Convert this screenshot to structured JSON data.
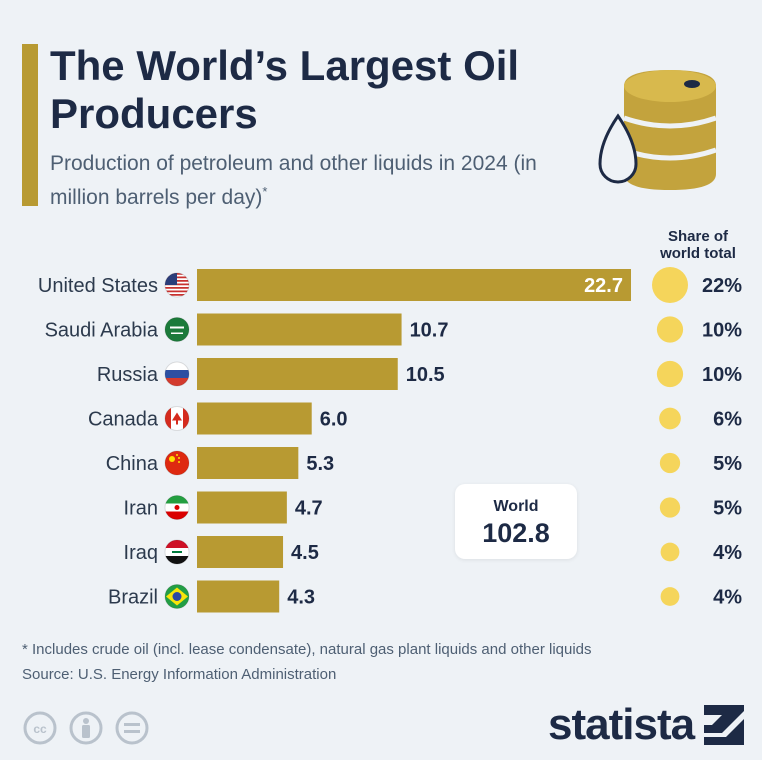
{
  "header": {
    "title": "The World’s Largest Oil Producers",
    "subtitle": "Production of petroleum and other liquids in 2024 (in million barrels per day)",
    "subtitle_marker": "*"
  },
  "share_header": "Share of world total",
  "world": {
    "label": "World",
    "value": "102.8"
  },
  "footer": {
    "footnote": "* Includes crude oil (incl. lease condensate), natural gas plant liquids and other liquids",
    "source": "Source: U.S. Energy Information Administration",
    "brand": "statista"
  },
  "icons": [
    "oil-barrel-icon",
    "oil-drop-icon",
    "cc-license-icon",
    "attribution-icon",
    "no-derivatives-icon",
    "statista-logo-icon"
  ],
  "colors": {
    "bar": "#b89a32",
    "share_dot": "#f5d55b",
    "title": "#1d2a45",
    "background": "#eef2f6"
  },
  "chart_data": {
    "type": "bar",
    "orientation": "horizontal",
    "categories": [
      "United States",
      "Saudi Arabia",
      "Russia",
      "Canada",
      "China",
      "Iran",
      "Iraq",
      "Brazil"
    ],
    "values": [
      22.7,
      10.7,
      10.5,
      6.0,
      5.3,
      4.7,
      4.5,
      4.3
    ],
    "value_labels": [
      "22.7",
      "10.7",
      "10.5",
      "6.0",
      "5.3",
      "4.7",
      "4.5",
      "4.3"
    ],
    "share_of_world_total": [
      22,
      10,
      10,
      6,
      5,
      5,
      4,
      4
    ],
    "share_labels": [
      "22%",
      "10%",
      "10%",
      "6%",
      "5%",
      "5%",
      "4%",
      "4%"
    ],
    "flags": [
      "united-states-flag-icon",
      "saudi-arabia-flag-icon",
      "russia-flag-icon",
      "canada-flag-icon",
      "china-flag-icon",
      "iran-flag-icon",
      "iraq-flag-icon",
      "brazil-flag-icon"
    ],
    "xlim": [
      0,
      22.7
    ],
    "grid": false,
    "legend": "none"
  }
}
